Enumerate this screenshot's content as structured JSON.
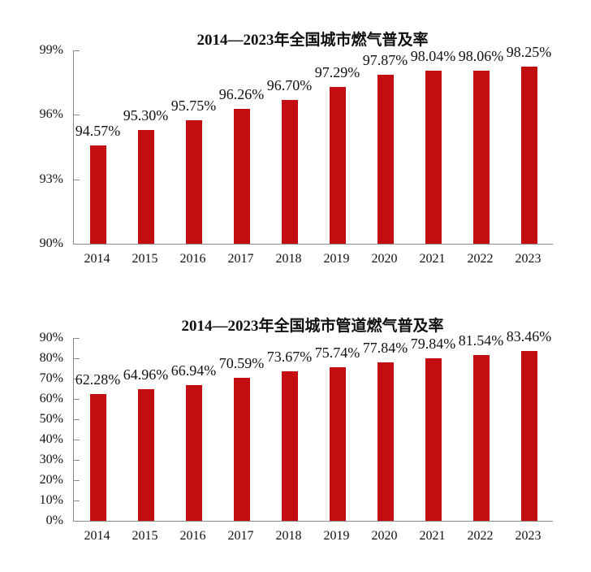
{
  "page": {
    "background": "#ffffff",
    "text_color": "#111111"
  },
  "chart_data": [
    {
      "type": "bar",
      "title": "2014—2023年全国城市燃气普及率",
      "categories": [
        "2014",
        "2015",
        "2016",
        "2017",
        "2018",
        "2019",
        "2020",
        "2021",
        "2022",
        "2023"
      ],
      "values": [
        94.57,
        95.3,
        95.75,
        96.26,
        96.7,
        97.29,
        97.87,
        98.04,
        98.06,
        98.25
      ],
      "value_labels": [
        "94.57%",
        "95.30%",
        "95.75%",
        "96.26%",
        "96.70%",
        "97.29%",
        "97.87%",
        "98.04%",
        "98.06%",
        "98.25%"
      ],
      "xlabel": "",
      "ylabel": "",
      "ylim": [
        90,
        99
      ],
      "yticks": [
        90,
        93,
        96,
        99
      ],
      "ytick_labels": [
        "90%",
        "93%",
        "96%",
        "99%"
      ],
      "grid": false,
      "legend": "none",
      "data_label_position": "outside-end",
      "bar_color": "#c40d10",
      "axis_color": "#8a8a8a"
    },
    {
      "type": "bar",
      "title": "2014—2023年全国城市管道燃气普及率",
      "categories": [
        "2014",
        "2015",
        "2016",
        "2017",
        "2018",
        "2019",
        "2020",
        "2021",
        "2022",
        "2023"
      ],
      "values": [
        62.28,
        64.96,
        66.94,
        70.59,
        73.67,
        75.74,
        77.84,
        79.84,
        81.54,
        83.46
      ],
      "value_labels": [
        "62.28%",
        "64.96%",
        "66.94%",
        "70.59%",
        "73.67%",
        "75.74%",
        "77.84%",
        "79.84%",
        "81.54%",
        "83.46%"
      ],
      "xlabel": "",
      "ylabel": "",
      "ylim": [
        0,
        90
      ],
      "yticks": [
        0,
        10,
        20,
        30,
        40,
        50,
        60,
        70,
        80,
        90
      ],
      "ytick_labels": [
        "0%",
        "10%",
        "20%",
        "30%",
        "40%",
        "50%",
        "60%",
        "70%",
        "80%",
        "90%"
      ],
      "grid": false,
      "legend": "none",
      "data_label_position": "outside-end",
      "bar_color": "#c40d10",
      "axis_color": "#8a8a8a"
    }
  ]
}
